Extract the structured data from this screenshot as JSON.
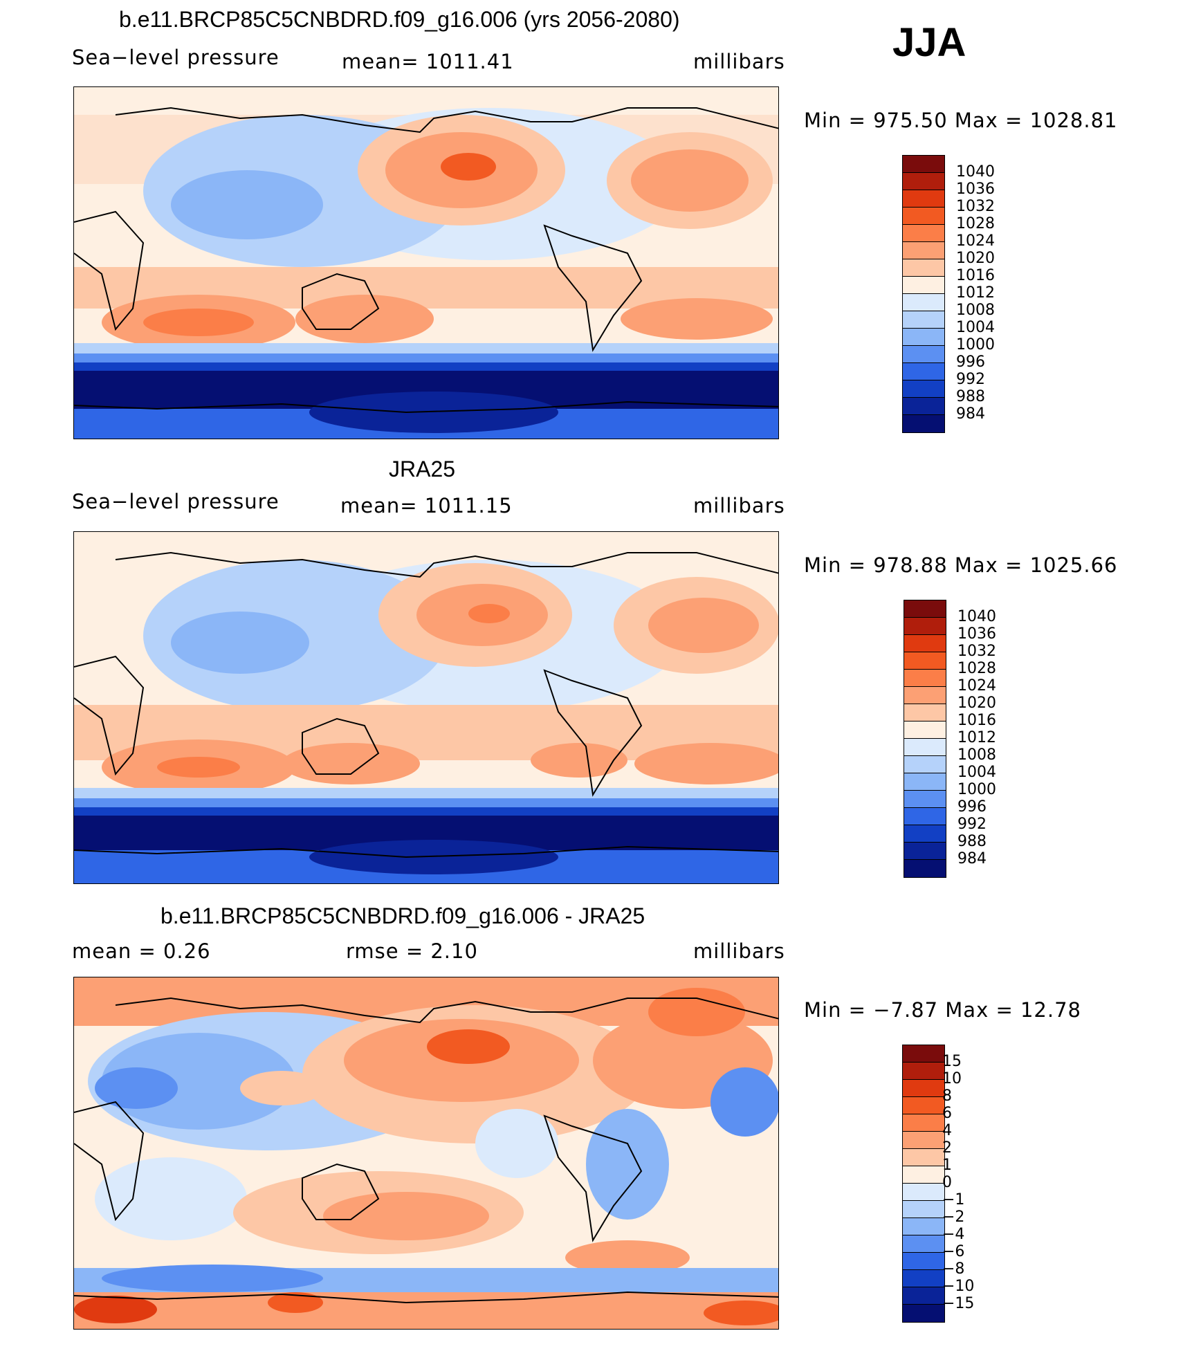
{
  "season": "JJA",
  "panels": [
    {
      "title": "b.e11.BRCP85C5CNBDRD.f09_g16.006 (yrs 2056-2080)",
      "left": "Sea−level pressure",
      "center": "mean=  1011.41",
      "right": "millibars",
      "minmax": "Min  =  975.50  Max  =  1028.81",
      "scale": "abs"
    },
    {
      "title": "JRA25",
      "left": "Sea−level pressure",
      "center": "mean=  1011.15",
      "right": "millibars",
      "minmax": "Min  =  978.88  Max  =  1025.66",
      "scale": "abs"
    },
    {
      "title": "b.e11.BRCP85C5CNBDRD.f09_g16.006 - JRA25",
      "left": "mean  =     0.26",
      "center": "rmse  =     2.10",
      "right": "millibars",
      "minmax": "Min  =    −7.87  Max  =    12.78",
      "scale": "diff"
    }
  ],
  "colorbars": {
    "abs": {
      "labels": [
        "1040",
        "1036",
        "1032",
        "1028",
        "1024",
        "1020",
        "1016",
        "1012",
        "1008",
        "1004",
        "1000",
        "996",
        "992",
        "988",
        "984"
      ],
      "colors": [
        "#7a0c0c",
        "#b01e0c",
        "#e03a10",
        "#f25a22",
        "#fb7e48",
        "#fca074",
        "#fdc7a6",
        "#fef0e2",
        "#dbeafc",
        "#b5d2fa",
        "#8bb6f7",
        "#5c90f2",
        "#2f66e6",
        "#1240c4",
        "#0a2398",
        "#050f72"
      ]
    },
    "diff": {
      "labels": [
        "15",
        "10",
        "8",
        "6",
        "4",
        "2",
        "1",
        "0",
        "−1",
        "−2",
        "−4",
        "−6",
        "−8",
        "−10",
        "−15"
      ],
      "colors": [
        "#7a0c0c",
        "#b01e0c",
        "#e03a10",
        "#f25a22",
        "#fb7e48",
        "#fca074",
        "#fdc7a6",
        "#fef0e2",
        "#dbeafc",
        "#b5d2fa",
        "#8bb6f7",
        "#5c90f2",
        "#2f66e6",
        "#1240c4",
        "#0a2398",
        "#050f72"
      ]
    }
  },
  "chart_data": {
    "type": "heatmap",
    "panels": [
      {
        "title": "b.e11.BRCP85C5CNBDRD.f09_g16.006 (yrs 2056-2080)",
        "variable": "Sea-level pressure",
        "units": "millibars",
        "mean": 1011.41,
        "min": 975.5,
        "max": 1028.81
      },
      {
        "title": "JRA25",
        "variable": "Sea-level pressure",
        "units": "millibars",
        "mean": 1011.15,
        "min": 978.88,
        "max": 1025.66
      },
      {
        "title": "b.e11.BRCP85C5CNBDRD.f09_g16.006 - JRA25",
        "units": "millibars",
        "mean": 0.26,
        "rmse": 2.1,
        "min": -7.87,
        "max": 12.78
      }
    ]
  }
}
